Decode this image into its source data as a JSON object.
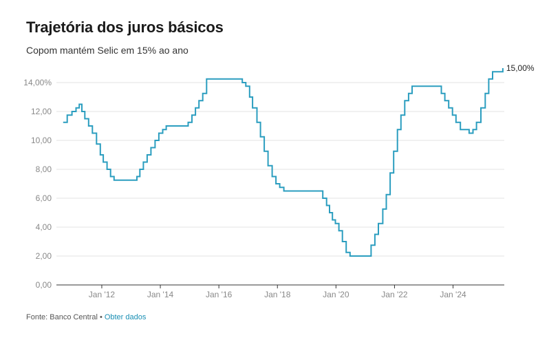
{
  "header": {
    "title": "Trajetória dos juros básicos",
    "subtitle": "Copom mantém Selic em 15% ao ano"
  },
  "footer": {
    "source": "Fonte: Banco Central",
    "separator": "•",
    "link_label": "Obter dados"
  },
  "colors": {
    "line": "#2a9dbf",
    "grid": "#e3e3e3",
    "axis": "#333333"
  },
  "chart_data": {
    "type": "line",
    "step": true,
    "x_unit": "year",
    "xlim": [
      2010.45,
      2025.75
    ],
    "ylim": [
      0,
      15
    ],
    "y_ticks": [
      {
        "value": 0,
        "label": "0,00"
      },
      {
        "value": 2,
        "label": "2,00"
      },
      {
        "value": 4,
        "label": "4,00"
      },
      {
        "value": 6,
        "label": "6,00"
      },
      {
        "value": 8,
        "label": "8,00"
      },
      {
        "value": 10,
        "label": "10,00"
      },
      {
        "value": 12,
        "label": "12,00"
      },
      {
        "value": 14,
        "label": "14,00%"
      }
    ],
    "x_ticks": [
      {
        "value": 2012,
        "label": "Jan '12"
      },
      {
        "value": 2014,
        "label": "Jan '14"
      },
      {
        "value": 2016,
        "label": "Jan '16"
      },
      {
        "value": 2018,
        "label": "Jan '18"
      },
      {
        "value": 2020,
        "label": "Jan '20"
      },
      {
        "value": 2022,
        "label": "Jan '22"
      },
      {
        "value": 2024,
        "label": "Jan '24"
      }
    ],
    "end_label": "15,00%",
    "grid": "horizontal",
    "series": [
      {
        "x": [
          2010.68,
          2010.82,
          2010.98,
          2011.12,
          2011.23,
          2011.32,
          2011.42,
          2011.55,
          2011.68,
          2011.82,
          2011.95,
          2012.05,
          2012.18,
          2012.3,
          2012.42,
          2012.55,
          2012.68,
          2013.2,
          2013.3,
          2013.42,
          2013.55,
          2013.68,
          2013.82,
          2013.95,
          2014.08,
          2014.2,
          2014.32,
          2014.95,
          2015.08,
          2015.2,
          2015.32,
          2015.45,
          2015.58,
          2016.8,
          2016.92,
          2017.05,
          2017.15,
          2017.3,
          2017.42,
          2017.55,
          2017.68,
          2017.82,
          2017.95,
          2018.08,
          2018.22,
          2019.55,
          2019.68,
          2019.78,
          2019.88,
          2019.98,
          2020.1,
          2020.22,
          2020.35,
          2020.48,
          2020.62,
          2021.2,
          2021.33,
          2021.45,
          2021.6,
          2021.72,
          2021.85,
          2021.97,
          2022.1,
          2022.22,
          2022.35,
          2022.48,
          2022.6,
          2023.6,
          2023.72,
          2023.85,
          2023.98,
          2024.1,
          2024.25,
          2024.55,
          2024.68,
          2024.8,
          2024.95,
          2025.1,
          2025.22,
          2025.35,
          2025.7
        ],
        "y": [
          11.25,
          11.75,
          12.0,
          12.25,
          12.5,
          12.0,
          11.5,
          11.0,
          10.5,
          9.75,
          9.0,
          8.5,
          8.0,
          7.5,
          7.25,
          7.25,
          7.25,
          7.5,
          8.0,
          8.5,
          9.0,
          9.5,
          10.0,
          10.5,
          10.75,
          11.0,
          11.0,
          11.25,
          11.75,
          12.25,
          12.75,
          13.25,
          14.25,
          14.0,
          13.75,
          13.0,
          12.25,
          11.25,
          10.25,
          9.25,
          8.25,
          7.5,
          7.0,
          6.75,
          6.5,
          6.0,
          5.5,
          5.0,
          4.5,
          4.25,
          3.75,
          3.0,
          2.25,
          2.0,
          2.0,
          2.75,
          3.5,
          4.25,
          5.25,
          6.25,
          7.75,
          9.25,
          10.75,
          11.75,
          12.75,
          13.25,
          13.75,
          13.25,
          12.75,
          12.25,
          11.75,
          11.25,
          10.75,
          10.5,
          10.75,
          11.25,
          12.25,
          13.25,
          14.25,
          14.75,
          15.0
        ]
      }
    ]
  }
}
